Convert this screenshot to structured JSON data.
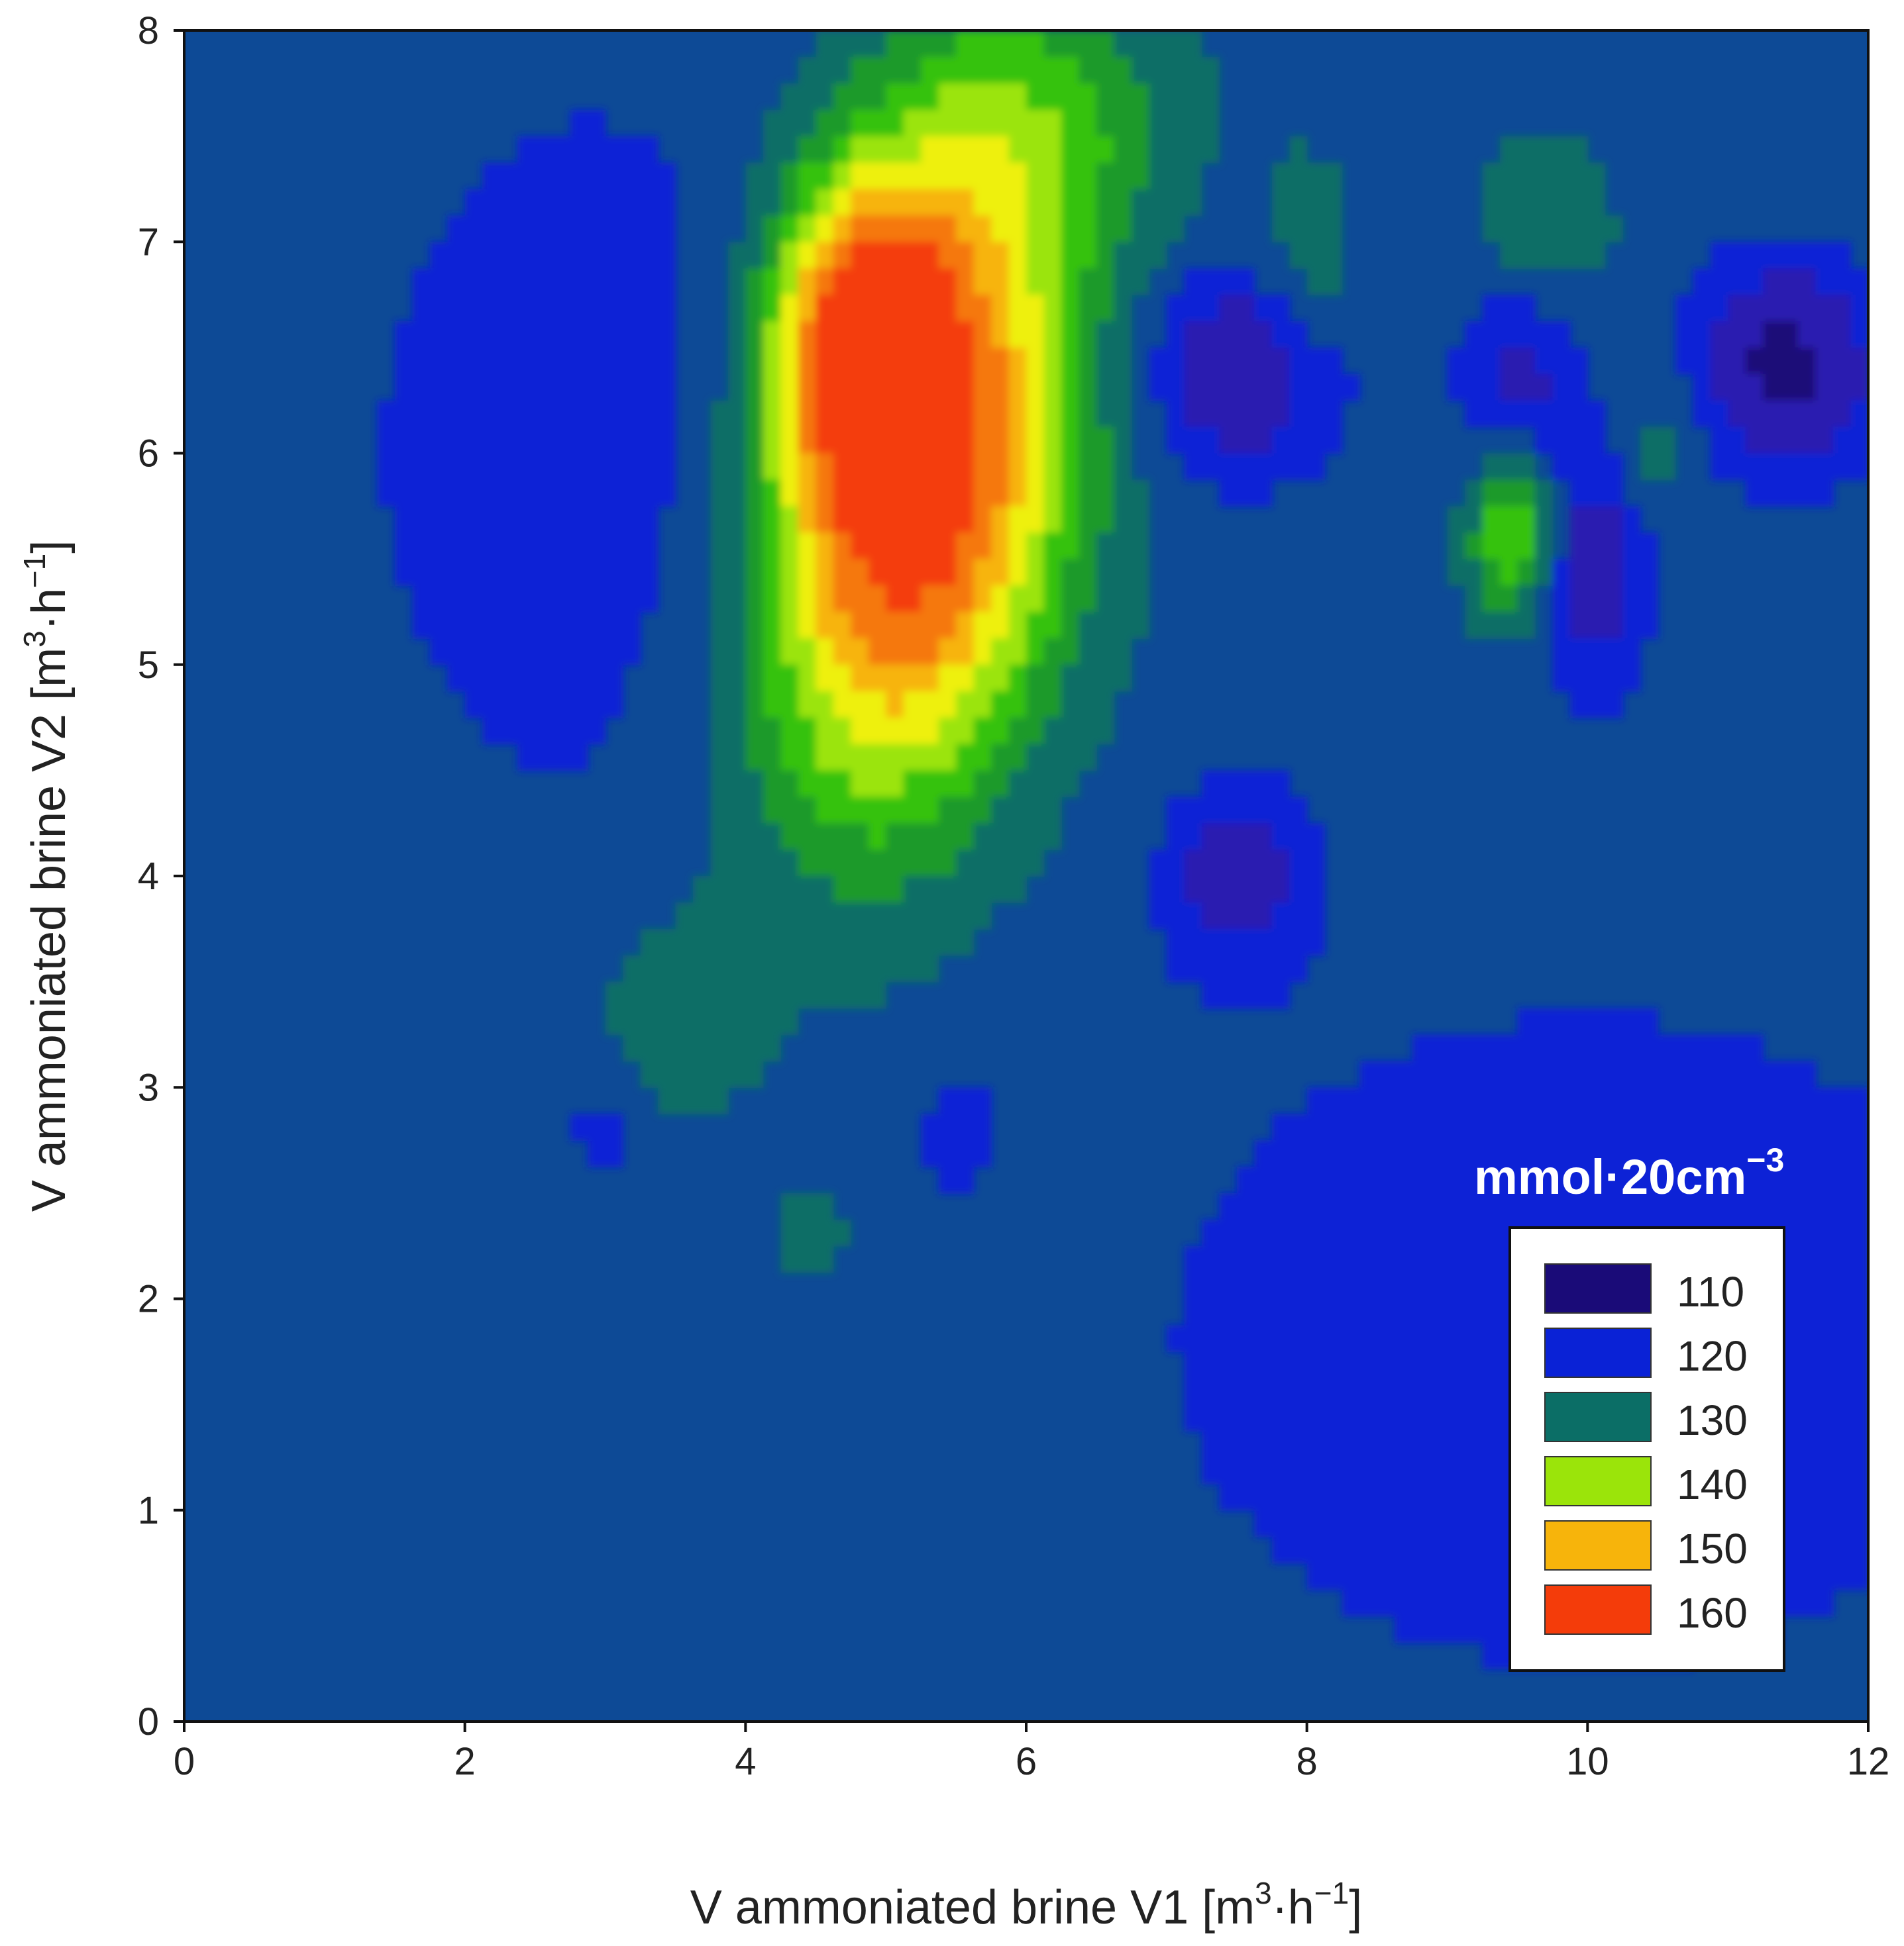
{
  "chart_data": {
    "type": "heatmap",
    "xlabel_main": "V ammoniated brine V1 [m",
    "xlabel_sup": "3",
    "xlabel_mid": "·h",
    "xlabel_sup2": "−1",
    "xlabel_end": "]",
    "ylabel_main": "V ammoniated brine V2 [m",
    "ylabel_sup": "3",
    "ylabel_mid": "·h",
    "ylabel_sup2": "−1",
    "ylabel_end": "]",
    "xlim": [
      0,
      12
    ],
    "ylim": [
      0,
      8
    ],
    "xticks": [
      "0",
      "2",
      "4",
      "6",
      "8",
      "10",
      "12"
    ],
    "yticks": [
      "0",
      "1",
      "2",
      "3",
      "4",
      "5",
      "6",
      "7",
      "8"
    ],
    "legend_title": "mmol·20cm",
    "legend_title_sup": "−3",
    "legend_position": "bottom-right",
    "levels": [
      {
        "label": "110",
        "value": 110,
        "color": "#1a0b78"
      },
      {
        "label": "120",
        "value": 120,
        "color": "#0a22d6"
      },
      {
        "label": "130",
        "value": 130,
        "color": "#0b6e66"
      },
      {
        "label": "140",
        "value": 140,
        "color": "#9be40a"
      },
      {
        "label": "150",
        "value": 150,
        "color": "#f7b40b"
      },
      {
        "label": "160",
        "value": 160,
        "color": "#f43c0a"
      }
    ],
    "background_value": 125,
    "features": [
      {
        "x": 5.2,
        "y": 5.8,
        "value": 162,
        "sx": 0.75,
        "sy": 1.1,
        "rot": -0.35
      },
      {
        "x": 4.8,
        "y": 6.6,
        "value": 148,
        "sx": 0.45,
        "sy": 0.5,
        "rot": 0
      },
      {
        "x": 6.0,
        "y": 7.6,
        "value": 134,
        "sx": 0.8,
        "sy": 0.5,
        "rot": 0
      },
      {
        "x": 9.5,
        "y": 5.6,
        "value": 142,
        "sx": 0.25,
        "sy": 0.3,
        "rot": 0
      },
      {
        "x": 7.5,
        "y": 6.4,
        "value": 112,
        "sx": 0.5,
        "sy": 0.35,
        "rot": 0
      },
      {
        "x": 11.4,
        "y": 6.4,
        "value": 110,
        "sx": 0.45,
        "sy": 0.35,
        "rot": 0
      },
      {
        "x": 10.0,
        "y": 5.5,
        "value": 113,
        "sx": 0.3,
        "sy": 0.4,
        "rot": 0
      },
      {
        "x": 7.5,
        "y": 4.0,
        "value": 115,
        "sx": 0.35,
        "sy": 0.3,
        "rot": 0
      },
      {
        "x": 9.5,
        "y": 6.4,
        "value": 116,
        "sx": 0.3,
        "sy": 0.3,
        "rot": 0
      },
      {
        "x": 3.0,
        "y": 6.0,
        "value": 119,
        "sx": 1.2,
        "sy": 1.2,
        "rot": 0
      },
      {
        "x": 10.0,
        "y": 1.8,
        "value": 120,
        "sx": 2.5,
        "sy": 1.3,
        "rot": 0
      },
      {
        "x": 3.5,
        "y": 3.3,
        "value": 130,
        "sx": 0.45,
        "sy": 0.4,
        "rot": 0
      },
      {
        "x": 8.0,
        "y": 6.9,
        "value": 132,
        "sx": 0.25,
        "sy": 0.35,
        "rot": 0
      },
      {
        "x": 9.7,
        "y": 7.1,
        "value": 132,
        "sx": 0.35,
        "sy": 0.3,
        "rot": 0
      },
      {
        "x": 10.5,
        "y": 6.0,
        "value": 131,
        "sx": 0.25,
        "sy": 0.25,
        "rot": 0
      },
      {
        "x": 4.5,
        "y": 2.3,
        "value": 130,
        "sx": 0.2,
        "sy": 0.2,
        "rot": 0
      },
      {
        "x": 5.5,
        "y": 2.8,
        "value": 120,
        "sx": 0.2,
        "sy": 0.2,
        "rot": 0
      },
      {
        "x": 3.0,
        "y": 2.8,
        "value": 120,
        "sx": 0.2,
        "sy": 0.2,
        "rot": 0
      }
    ]
  }
}
